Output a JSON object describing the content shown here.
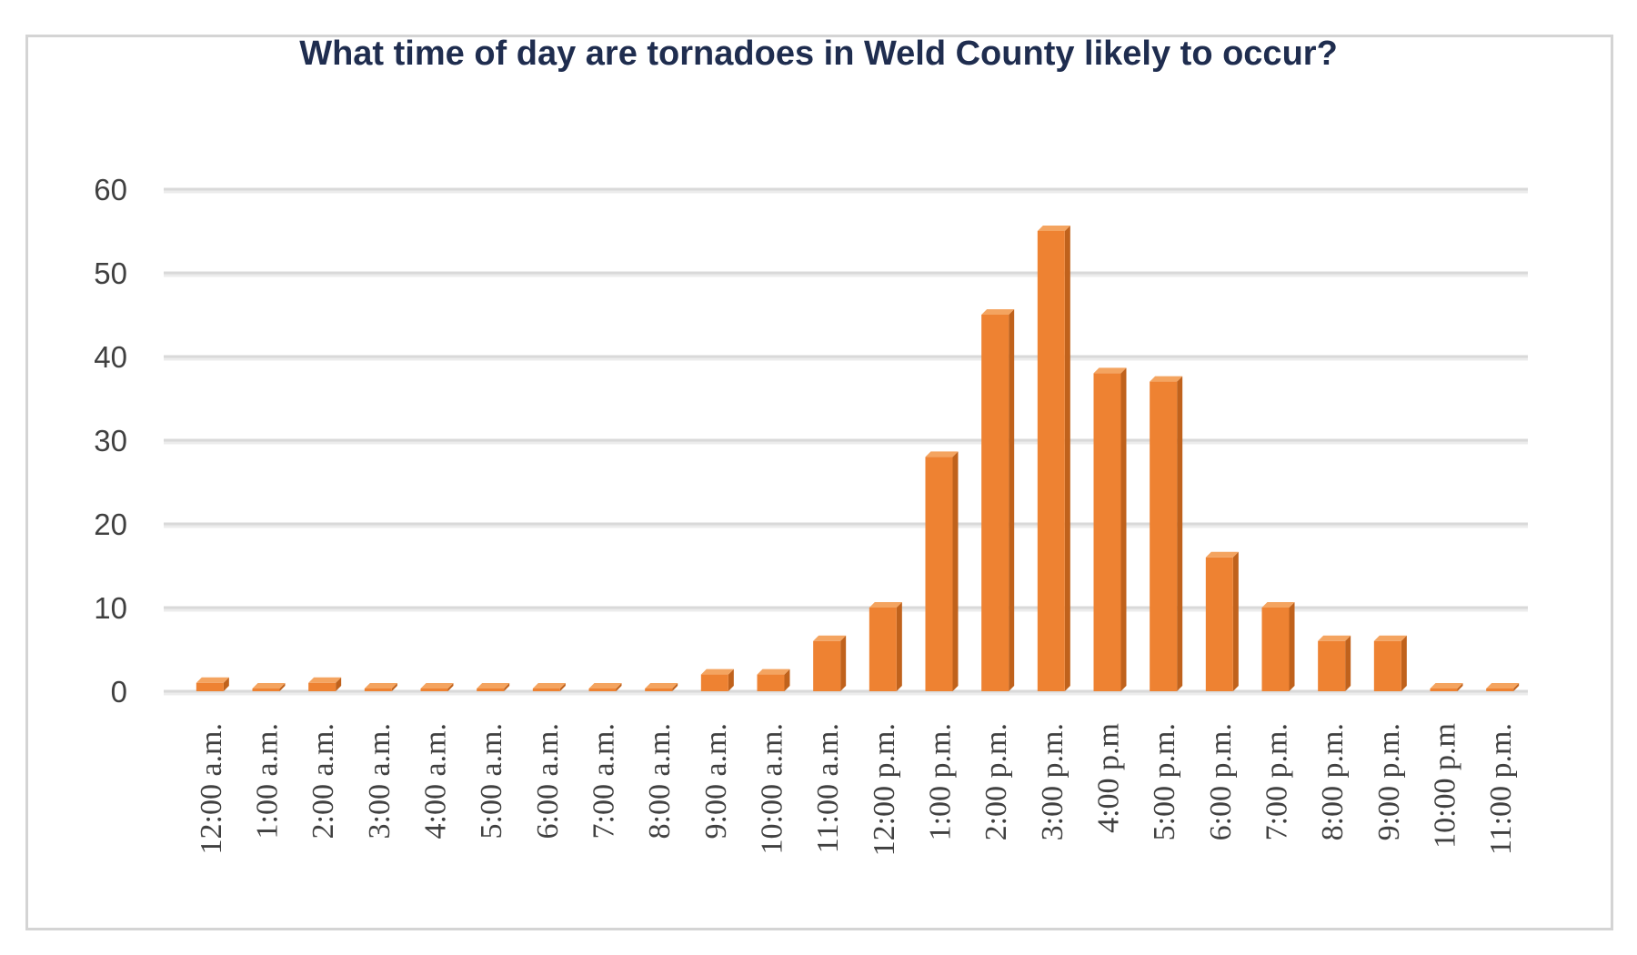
{
  "chart_data": {
    "type": "bar",
    "title": "What time of day are tornadoes in Weld County likely to occur?",
    "xlabel": "",
    "ylabel": "",
    "ylim": [
      0,
      60
    ],
    "yticks": [
      0,
      10,
      20,
      30,
      40,
      50,
      60
    ],
    "grid": true,
    "legend": "none",
    "categories": [
      "12:00 a.m.",
      "1:00 a.m.",
      "2:00 a.m.",
      "3:00 a.m.",
      "4:00 a.m.",
      "5:00 a.m.",
      "6:00 a.m.",
      "7:00 a.m.",
      "8:00 a.m.",
      "9:00 a.m.",
      "10:00 a.m.",
      "11:00 a.m.",
      "12:00 p.m.",
      "1:00 p.m.",
      "2:00 p.m.",
      "3:00 p.m.",
      "4:00 p.m",
      "5:00 p.m.",
      "6:00 p.m.",
      "7:00 p.m.",
      "8:00 p.m.",
      "9:00 p.m.",
      "10:00 p.m",
      "11:00 p.m."
    ],
    "values": [
      1,
      0,
      1,
      0,
      0,
      0,
      0,
      0,
      0,
      2,
      2,
      6,
      10,
      28,
      45,
      55,
      38,
      37,
      16,
      10,
      6,
      6,
      0,
      0
    ],
    "colors": {
      "bar_front": "#ee8232",
      "bar_side": "#c0621c",
      "bar_top": "#f4a460",
      "grid": "#d9d9d9",
      "title": "#1f2d4f"
    }
  }
}
